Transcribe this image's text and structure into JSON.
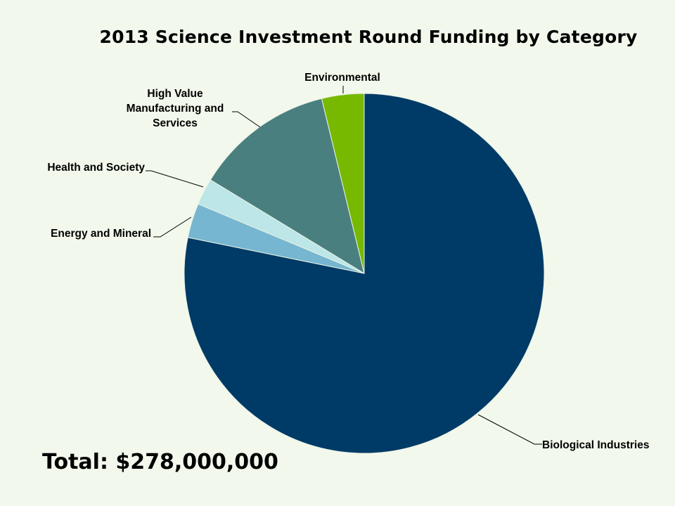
{
  "chart_data": {
    "type": "pie",
    "title": "2013 Science Investment Round Funding by Category",
    "slices": [
      {
        "label": "Biological Industries",
        "value": 78.2,
        "color": "#003a66"
      },
      {
        "label": "Energy and Mineral",
        "value": 3.1,
        "color": "#76b6d0"
      },
      {
        "label": "Health and Society",
        "value": 2.4,
        "color": "#bce6e8"
      },
      {
        "label": "High Value Manufacturing and Services",
        "value": 12.5,
        "color": "#4a7f80"
      },
      {
        "label": "Environmental",
        "value": 3.8,
        "color": "#76b900"
      }
    ]
  },
  "footer": {
    "total": "Total: $278,000,000"
  }
}
